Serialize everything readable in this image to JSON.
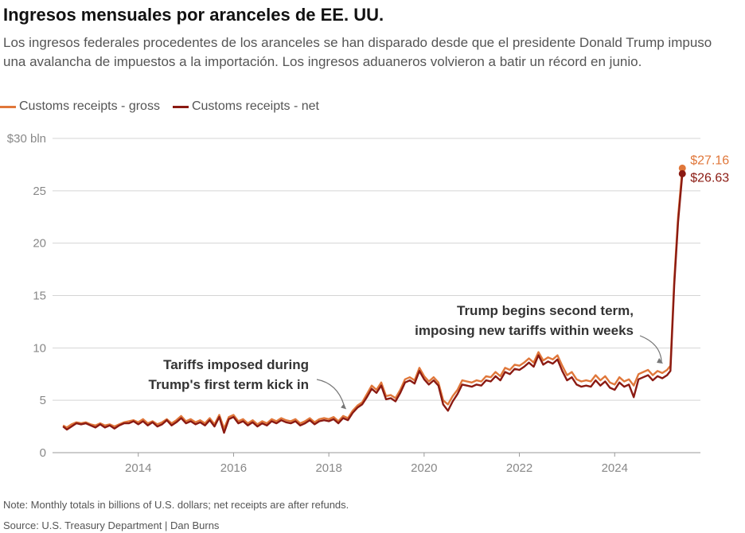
{
  "title": "Ingresos mensuales por aranceles de EE. UU.",
  "subtitle": "Los ingresos federales procedentes de los aranceles se han disparado desde que el presidente Donald Trump impuso una avalancha de impuestos a la importación. Los ingresos aduaneros volvieron a batir un récord en junio.",
  "legend": {
    "gross": "Customs receipts - gross",
    "net": "Customs receipts - net"
  },
  "colors": {
    "gross": "#e0773a",
    "net": "#8b1a12",
    "grid": "#d5d5d5",
    "axis_text": "#888888"
  },
  "note": "Note: Monthly totals in billions of U.S. dollars; net receipts are after refunds.",
  "source": "Source: U.S. Treasury Department | Dan Burns",
  "chart_data": {
    "type": "line",
    "ylim": [
      0,
      30
    ],
    "xlim": [
      2012.2,
      2025.8
    ],
    "y_ticks": [
      0,
      5,
      10,
      15,
      20,
      25,
      30
    ],
    "y_tick_labels": [
      "0",
      "5",
      "10",
      "15",
      "20",
      "25",
      "$30 bln"
    ],
    "x_ticks": [
      2014,
      2016,
      2018,
      2020,
      2022,
      2024
    ],
    "x_tick_labels": [
      "2014",
      "2016",
      "2018",
      "2020",
      "2022",
      "2024"
    ],
    "grid": "horizontal",
    "series": [
      {
        "name": "Customs receipts - gross",
        "end_label": "$27.16",
        "points": [
          [
            2012.42,
            2.6
          ],
          [
            2012.5,
            2.4
          ],
          [
            2012.6,
            2.7
          ],
          [
            2012.7,
            2.9
          ],
          [
            2012.8,
            2.8
          ],
          [
            2012.9,
            2.9
          ],
          [
            2013.0,
            2.7
          ],
          [
            2013.1,
            2.6
          ],
          [
            2013.2,
            2.8
          ],
          [
            2013.3,
            2.6
          ],
          [
            2013.4,
            2.7
          ],
          [
            2013.5,
            2.5
          ],
          [
            2013.6,
            2.7
          ],
          [
            2013.7,
            2.9
          ],
          [
            2013.8,
            3.0
          ],
          [
            2013.9,
            3.1
          ],
          [
            2014.0,
            2.9
          ],
          [
            2014.1,
            3.2
          ],
          [
            2014.2,
            2.8
          ],
          [
            2014.3,
            3.0
          ],
          [
            2014.4,
            2.7
          ],
          [
            2014.5,
            2.9
          ],
          [
            2014.6,
            3.2
          ],
          [
            2014.7,
            2.8
          ],
          [
            2014.8,
            3.1
          ],
          [
            2014.9,
            3.5
          ],
          [
            2015.0,
            3.0
          ],
          [
            2015.1,
            3.2
          ],
          [
            2015.2,
            2.9
          ],
          [
            2015.3,
            3.1
          ],
          [
            2015.4,
            2.8
          ],
          [
            2015.5,
            3.3
          ],
          [
            2015.6,
            2.7
          ],
          [
            2015.7,
            3.6
          ],
          [
            2015.8,
            2.3
          ],
          [
            2015.9,
            3.4
          ],
          [
            2016.0,
            3.6
          ],
          [
            2016.1,
            3.0
          ],
          [
            2016.2,
            3.2
          ],
          [
            2016.3,
            2.8
          ],
          [
            2016.4,
            3.1
          ],
          [
            2016.5,
            2.7
          ],
          [
            2016.6,
            3.0
          ],
          [
            2016.7,
            2.8
          ],
          [
            2016.8,
            3.2
          ],
          [
            2016.9,
            3.0
          ],
          [
            2017.0,
            3.3
          ],
          [
            2017.1,
            3.1
          ],
          [
            2017.2,
            3.0
          ],
          [
            2017.3,
            3.2
          ],
          [
            2017.4,
            2.8
          ],
          [
            2017.5,
            3.0
          ],
          [
            2017.6,
            3.3
          ],
          [
            2017.7,
            2.9
          ],
          [
            2017.8,
            3.2
          ],
          [
            2017.9,
            3.3
          ],
          [
            2018.0,
            3.2
          ],
          [
            2018.1,
            3.4
          ],
          [
            2018.2,
            3.0
          ],
          [
            2018.3,
            3.5
          ],
          [
            2018.4,
            3.3
          ],
          [
            2018.5,
            4.0
          ],
          [
            2018.6,
            4.5
          ],
          [
            2018.7,
            4.8
          ],
          [
            2018.8,
            5.6
          ],
          [
            2018.9,
            6.4
          ],
          [
            2019.0,
            6.0
          ],
          [
            2019.1,
            6.7
          ],
          [
            2019.2,
            5.4
          ],
          [
            2019.3,
            5.5
          ],
          [
            2019.4,
            5.2
          ],
          [
            2019.5,
            6.0
          ],
          [
            2019.6,
            7.0
          ],
          [
            2019.7,
            7.2
          ],
          [
            2019.8,
            6.9
          ],
          [
            2019.9,
            8.1
          ],
          [
            2020.0,
            7.3
          ],
          [
            2020.1,
            6.8
          ],
          [
            2020.2,
            7.2
          ],
          [
            2020.3,
            6.7
          ],
          [
            2020.4,
            5.0
          ],
          [
            2020.5,
            4.6
          ],
          [
            2020.6,
            5.4
          ],
          [
            2020.7,
            6.0
          ],
          [
            2020.8,
            6.9
          ],
          [
            2020.9,
            6.8
          ],
          [
            2021.0,
            6.7
          ],
          [
            2021.1,
            6.9
          ],
          [
            2021.2,
            6.8
          ],
          [
            2021.3,
            7.3
          ],
          [
            2021.4,
            7.2
          ],
          [
            2021.5,
            7.7
          ],
          [
            2021.6,
            7.3
          ],
          [
            2021.7,
            8.1
          ],
          [
            2021.8,
            7.9
          ],
          [
            2021.9,
            8.4
          ],
          [
            2022.0,
            8.3
          ],
          [
            2022.1,
            8.6
          ],
          [
            2022.2,
            9.0
          ],
          [
            2022.3,
            8.6
          ],
          [
            2022.4,
            9.6
          ],
          [
            2022.5,
            8.8
          ],
          [
            2022.6,
            9.1
          ],
          [
            2022.7,
            8.9
          ],
          [
            2022.8,
            9.3
          ],
          [
            2022.9,
            8.3
          ],
          [
            2023.0,
            7.4
          ],
          [
            2023.1,
            7.7
          ],
          [
            2023.2,
            7.0
          ],
          [
            2023.3,
            6.8
          ],
          [
            2023.4,
            6.9
          ],
          [
            2023.5,
            6.8
          ],
          [
            2023.6,
            7.4
          ],
          [
            2023.7,
            6.9
          ],
          [
            2023.8,
            7.3
          ],
          [
            2023.9,
            6.7
          ],
          [
            2024.0,
            6.5
          ],
          [
            2024.1,
            7.2
          ],
          [
            2024.2,
            6.8
          ],
          [
            2024.3,
            7.0
          ],
          [
            2024.4,
            6.4
          ],
          [
            2024.5,
            7.5
          ],
          [
            2024.6,
            7.7
          ],
          [
            2024.7,
            7.9
          ],
          [
            2024.8,
            7.4
          ],
          [
            2024.9,
            7.8
          ],
          [
            2025.0,
            7.6
          ],
          [
            2025.1,
            7.9
          ],
          [
            2025.17,
            8.3
          ],
          [
            2025.25,
            16.5
          ],
          [
            2025.33,
            22.5
          ],
          [
            2025.42,
            27.16
          ]
        ]
      },
      {
        "name": "Customs receipts - net",
        "end_label": "$26.63",
        "points": [
          [
            2012.42,
            2.5
          ],
          [
            2012.5,
            2.2
          ],
          [
            2012.6,
            2.5
          ],
          [
            2012.7,
            2.8
          ],
          [
            2012.8,
            2.7
          ],
          [
            2012.9,
            2.8
          ],
          [
            2013.0,
            2.6
          ],
          [
            2013.1,
            2.4
          ],
          [
            2013.2,
            2.7
          ],
          [
            2013.3,
            2.4
          ],
          [
            2013.4,
            2.6
          ],
          [
            2013.5,
            2.3
          ],
          [
            2013.6,
            2.6
          ],
          [
            2013.7,
            2.8
          ],
          [
            2013.8,
            2.8
          ],
          [
            2013.9,
            3.0
          ],
          [
            2014.0,
            2.7
          ],
          [
            2014.1,
            3.0
          ],
          [
            2014.2,
            2.6
          ],
          [
            2014.3,
            2.9
          ],
          [
            2014.4,
            2.5
          ],
          [
            2014.5,
            2.7
          ],
          [
            2014.6,
            3.1
          ],
          [
            2014.7,
            2.6
          ],
          [
            2014.8,
            2.9
          ],
          [
            2014.9,
            3.3
          ],
          [
            2015.0,
            2.8
          ],
          [
            2015.1,
            3.0
          ],
          [
            2015.2,
            2.7
          ],
          [
            2015.3,
            2.9
          ],
          [
            2015.4,
            2.6
          ],
          [
            2015.5,
            3.1
          ],
          [
            2015.6,
            2.5
          ],
          [
            2015.7,
            3.4
          ],
          [
            2015.8,
            1.9
          ],
          [
            2015.9,
            3.2
          ],
          [
            2016.0,
            3.4
          ],
          [
            2016.1,
            2.8
          ],
          [
            2016.2,
            3.0
          ],
          [
            2016.3,
            2.6
          ],
          [
            2016.4,
            2.9
          ],
          [
            2016.5,
            2.5
          ],
          [
            2016.6,
            2.8
          ],
          [
            2016.7,
            2.6
          ],
          [
            2016.8,
            3.0
          ],
          [
            2016.9,
            2.8
          ],
          [
            2017.0,
            3.1
          ],
          [
            2017.1,
            2.9
          ],
          [
            2017.2,
            2.8
          ],
          [
            2017.3,
            3.0
          ],
          [
            2017.4,
            2.6
          ],
          [
            2017.5,
            2.8
          ],
          [
            2017.6,
            3.1
          ],
          [
            2017.7,
            2.7
          ],
          [
            2017.8,
            3.0
          ],
          [
            2017.9,
            3.1
          ],
          [
            2018.0,
            3.0
          ],
          [
            2018.1,
            3.2
          ],
          [
            2018.2,
            2.8
          ],
          [
            2018.3,
            3.3
          ],
          [
            2018.4,
            3.1
          ],
          [
            2018.5,
            3.8
          ],
          [
            2018.6,
            4.3
          ],
          [
            2018.7,
            4.6
          ],
          [
            2018.8,
            5.3
          ],
          [
            2018.9,
            6.1
          ],
          [
            2019.0,
            5.7
          ],
          [
            2019.1,
            6.4
          ],
          [
            2019.2,
            5.1
          ],
          [
            2019.3,
            5.2
          ],
          [
            2019.4,
            4.9
          ],
          [
            2019.5,
            5.7
          ],
          [
            2019.6,
            6.7
          ],
          [
            2019.7,
            6.9
          ],
          [
            2019.8,
            6.6
          ],
          [
            2019.9,
            7.8
          ],
          [
            2020.0,
            7.0
          ],
          [
            2020.1,
            6.5
          ],
          [
            2020.2,
            6.9
          ],
          [
            2020.3,
            6.4
          ],
          [
            2020.4,
            4.6
          ],
          [
            2020.5,
            4.0
          ],
          [
            2020.6,
            4.9
          ],
          [
            2020.7,
            5.6
          ],
          [
            2020.8,
            6.5
          ],
          [
            2020.9,
            6.4
          ],
          [
            2021.0,
            6.3
          ],
          [
            2021.1,
            6.5
          ],
          [
            2021.2,
            6.4
          ],
          [
            2021.3,
            6.9
          ],
          [
            2021.4,
            6.8
          ],
          [
            2021.5,
            7.3
          ],
          [
            2021.6,
            6.9
          ],
          [
            2021.7,
            7.7
          ],
          [
            2021.8,
            7.5
          ],
          [
            2021.9,
            8.0
          ],
          [
            2022.0,
            7.9
          ],
          [
            2022.1,
            8.2
          ],
          [
            2022.2,
            8.6
          ],
          [
            2022.3,
            8.2
          ],
          [
            2022.4,
            9.3
          ],
          [
            2022.5,
            8.4
          ],
          [
            2022.6,
            8.7
          ],
          [
            2022.7,
            8.5
          ],
          [
            2022.8,
            8.9
          ],
          [
            2022.9,
            7.8
          ],
          [
            2023.0,
            6.9
          ],
          [
            2023.1,
            7.2
          ],
          [
            2023.2,
            6.5
          ],
          [
            2023.3,
            6.3
          ],
          [
            2023.4,
            6.4
          ],
          [
            2023.5,
            6.3
          ],
          [
            2023.6,
            6.9
          ],
          [
            2023.7,
            6.4
          ],
          [
            2023.8,
            6.8
          ],
          [
            2023.9,
            6.2
          ],
          [
            2024.0,
            6.0
          ],
          [
            2024.1,
            6.7
          ],
          [
            2024.2,
            6.3
          ],
          [
            2024.3,
            6.5
          ],
          [
            2024.4,
            5.3
          ],
          [
            2024.5,
            7.0
          ],
          [
            2024.6,
            7.2
          ],
          [
            2024.7,
            7.4
          ],
          [
            2024.8,
            6.9
          ],
          [
            2024.9,
            7.3
          ],
          [
            2025.0,
            7.1
          ],
          [
            2025.1,
            7.4
          ],
          [
            2025.17,
            7.8
          ],
          [
            2025.25,
            16.0
          ],
          [
            2025.33,
            22.0
          ],
          [
            2025.42,
            26.63
          ]
        ]
      }
    ],
    "annotations": [
      {
        "text": [
          "Tariffs imposed during",
          "Trump's first term kick in"
        ],
        "points_to": [
          2018.4,
          4.0
        ]
      },
      {
        "text": [
          "Trump begins second term,",
          "imposing new tariffs within weeks"
        ],
        "points_to": [
          2025.05,
          8.2
        ]
      }
    ]
  }
}
